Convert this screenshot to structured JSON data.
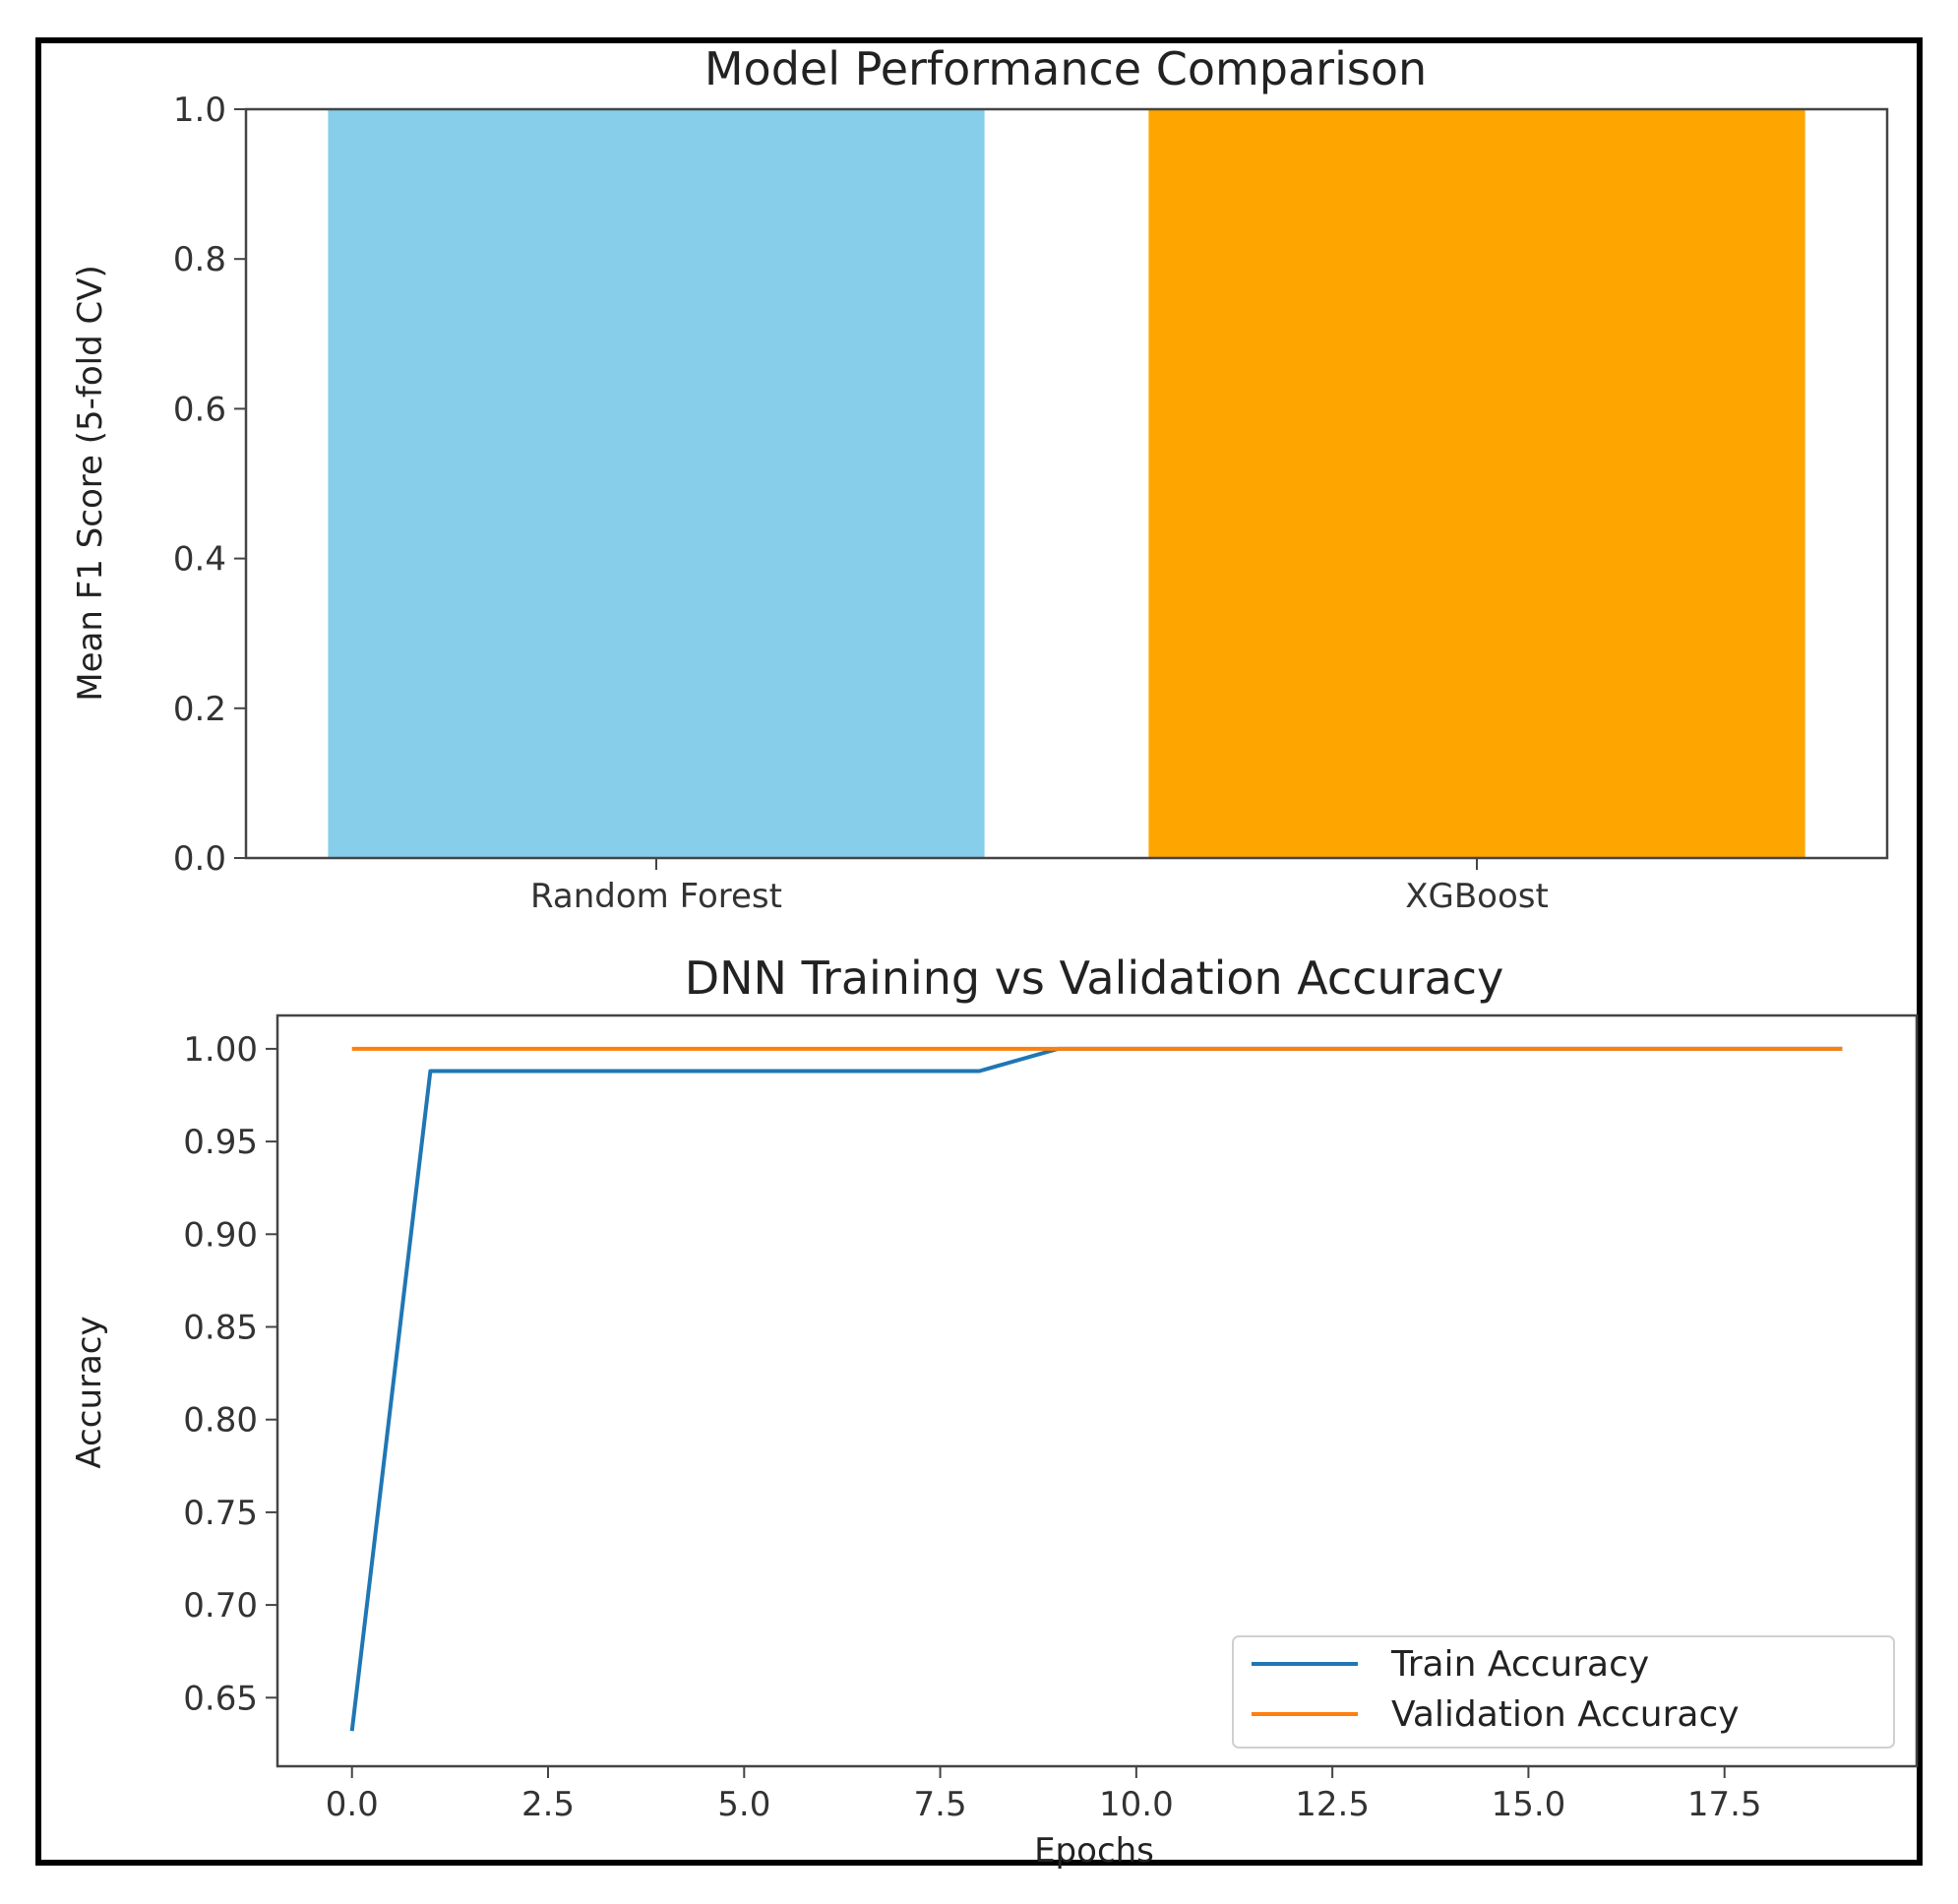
{
  "chart_data": [
    {
      "type": "bar",
      "title": "Model Performance Comparison",
      "xlabel": "",
      "ylabel": "Mean F1 Score (5-fold CV)",
      "categories": [
        "Random Forest",
        "XGBoost"
      ],
      "values": [
        1.0,
        1.0
      ],
      "colors": [
        "#87CEEB",
        "#FFA500"
      ],
      "ylim": [
        0,
        1.0
      ],
      "yticks": [
        "0.0",
        "0.2",
        "0.4",
        "0.6",
        "0.8",
        "1.0"
      ],
      "grid": false
    },
    {
      "type": "line",
      "title": "DNN Training vs Validation Accuracy",
      "xlabel": "Epochs",
      "ylabel": "Accuracy",
      "x": [
        0,
        1,
        2,
        3,
        4,
        5,
        6,
        7,
        8,
        9,
        10,
        11,
        12,
        13,
        14,
        15,
        16,
        17,
        18,
        19
      ],
      "series": [
        {
          "name": "Train Accuracy",
          "color": "#1f77b4",
          "values": [
            0.632,
            0.988,
            0.988,
            0.988,
            0.988,
            0.988,
            0.988,
            0.988,
            0.988,
            1.0,
            1.0,
            1.0,
            1.0,
            1.0,
            1.0,
            1.0,
            1.0,
            1.0,
            1.0,
            1.0
          ]
        },
        {
          "name": "Validation Accuracy",
          "color": "#ff7f0e",
          "values": [
            1.0,
            1.0,
            1.0,
            1.0,
            1.0,
            1.0,
            1.0,
            1.0,
            1.0,
            1.0,
            1.0,
            1.0,
            1.0,
            1.0,
            1.0,
            1.0,
            1.0,
            1.0,
            1.0,
            1.0
          ]
        }
      ],
      "xlim": [
        -0.95,
        19.95
      ],
      "ylim": [
        0.613,
        1.018
      ],
      "xticks": [
        "0.0",
        "2.5",
        "5.0",
        "7.5",
        "10.0",
        "12.5",
        "15.0",
        "17.5"
      ],
      "yticks": [
        "0.65",
        "0.70",
        "0.75",
        "0.80",
        "0.85",
        "0.90",
        "0.95",
        "1.00"
      ],
      "legend": "lower-right",
      "grid": false
    }
  ]
}
